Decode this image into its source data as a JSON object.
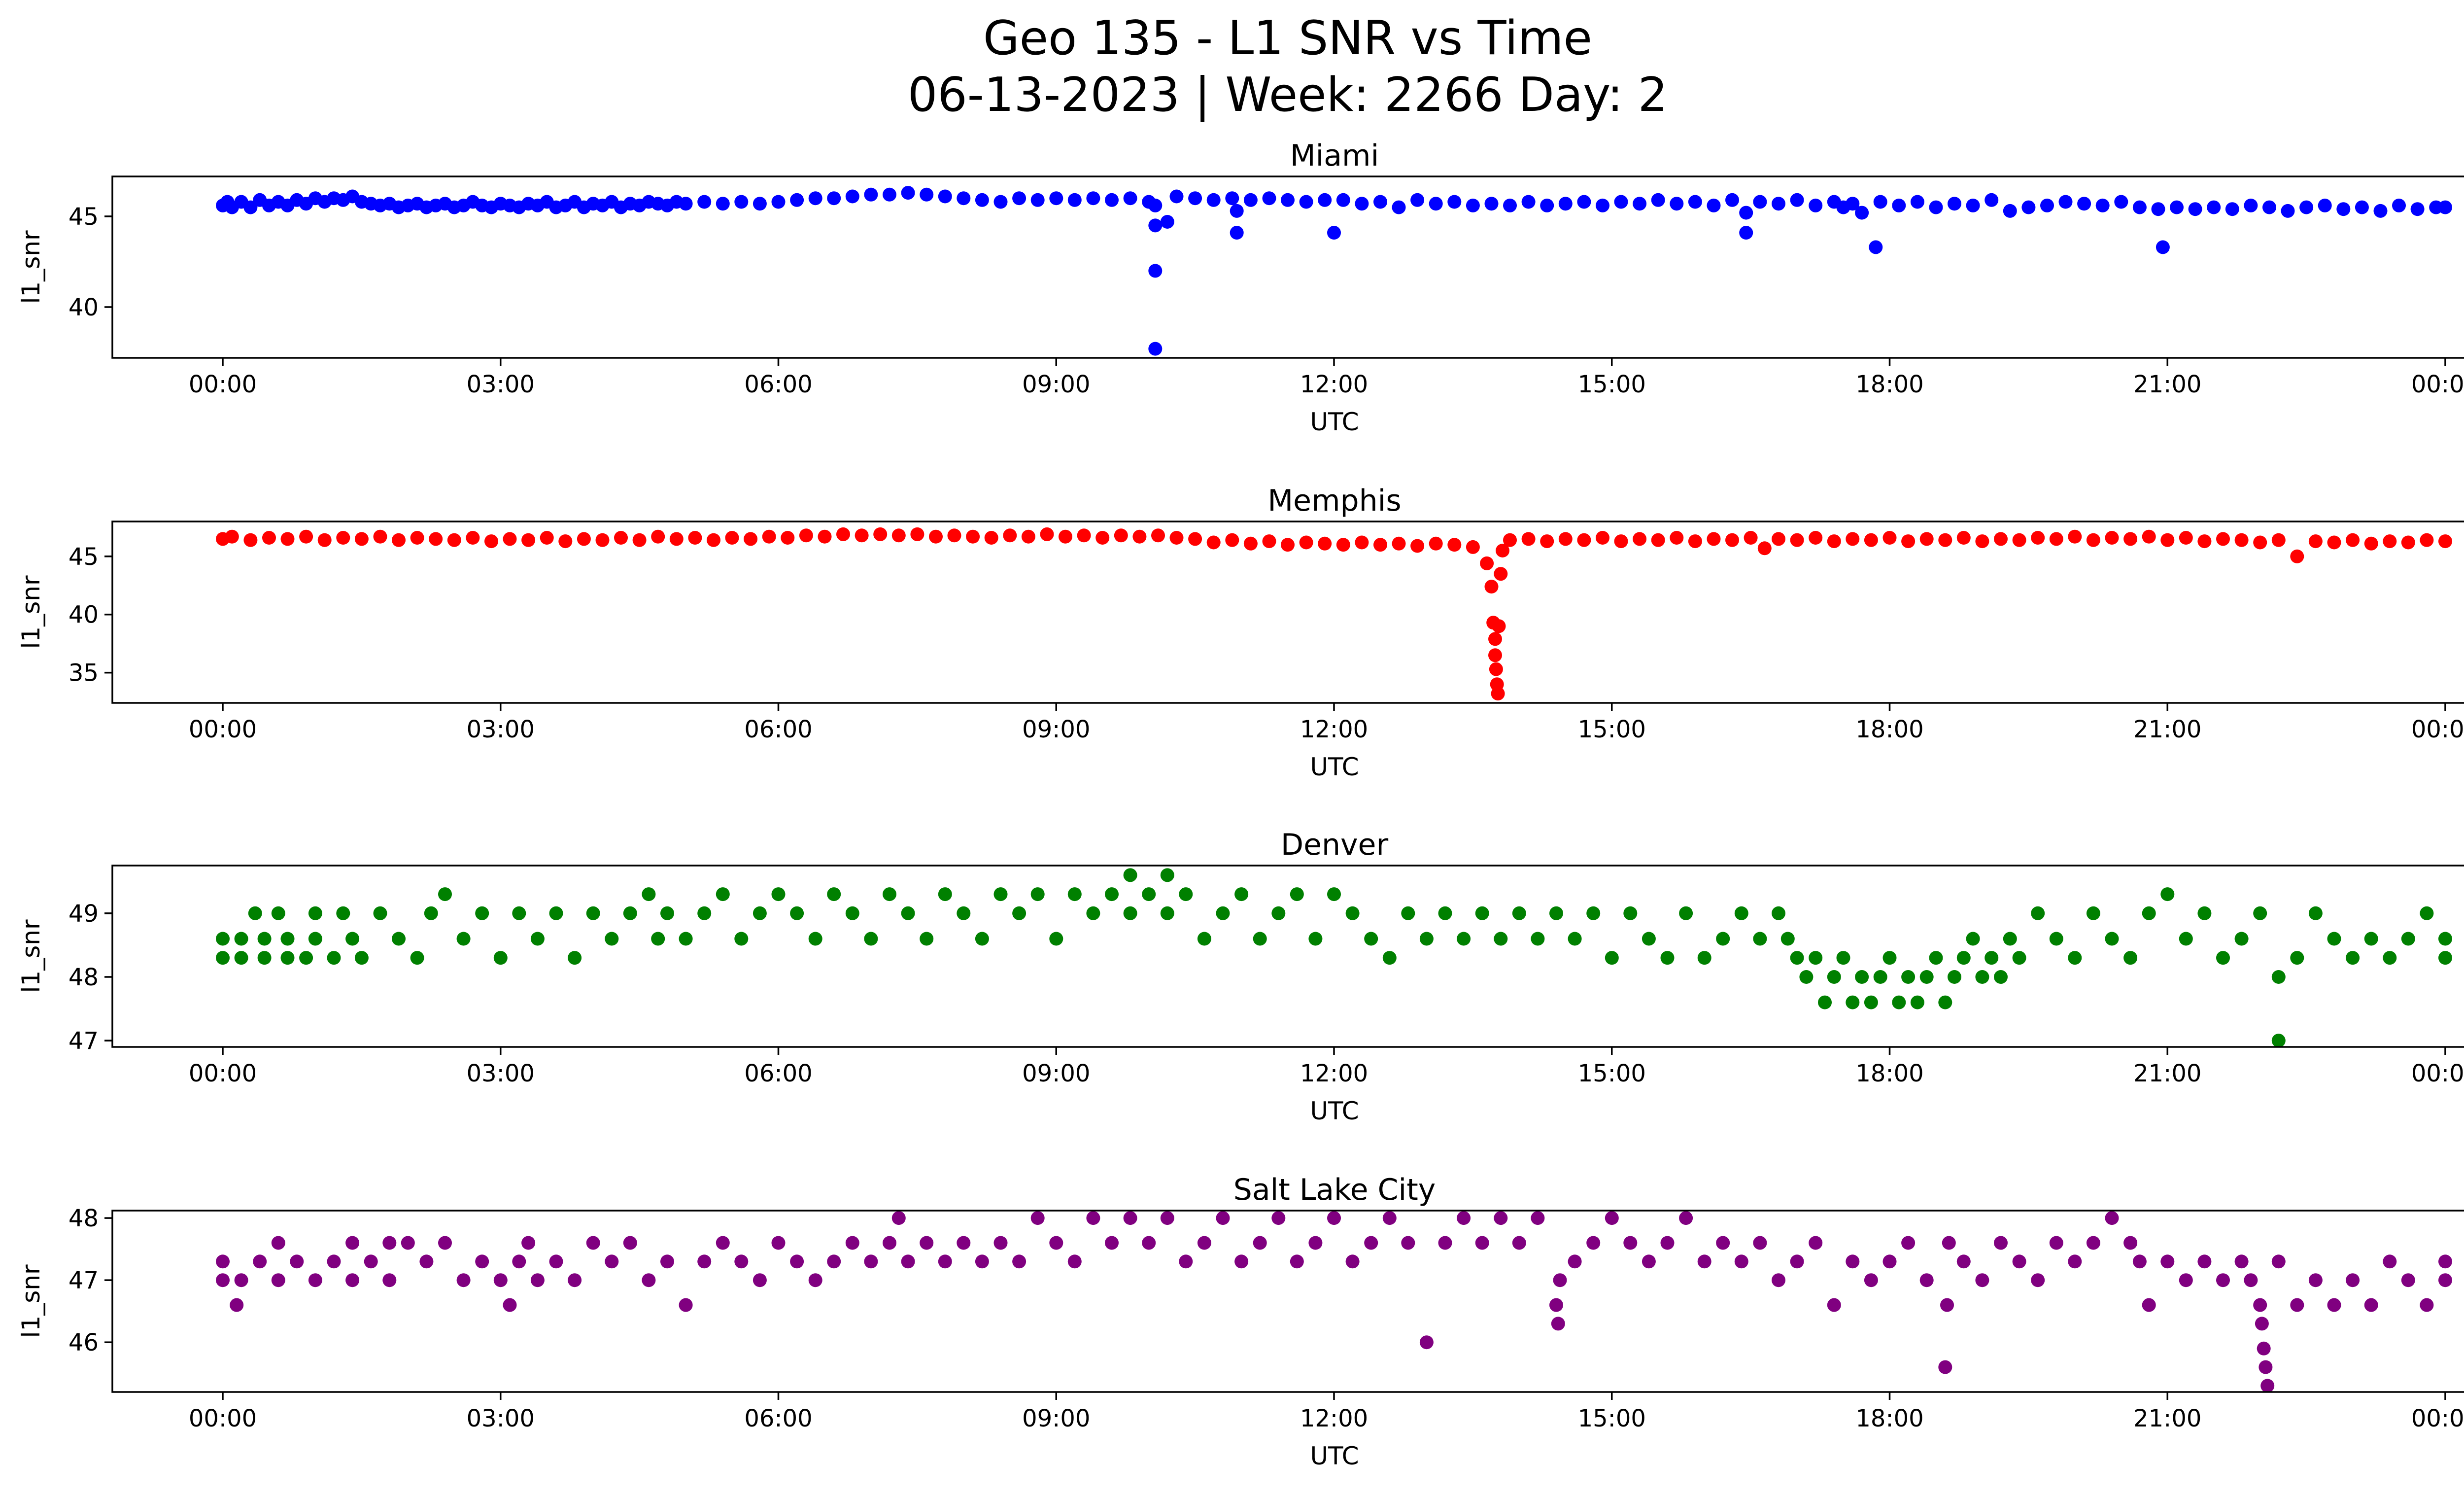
{
  "figure": {
    "title_line1": "Geo 135 - L1 SNR vs Time",
    "title_line2": "06-13-2023 | Week: 2266 Day: 2"
  },
  "chart_data": [
    {
      "type": "scatter",
      "title": "Miami",
      "xlabel": "UTC",
      "ylabel": "l1_snr",
      "color": "#0000ff",
      "xlim": [
        "2023-06-13 00:00",
        "2023-06-14 00:00"
      ],
      "ylim": [
        37.2,
        47.2
      ],
      "xticks": [
        "00:00",
        "03:00",
        "06:00",
        "09:00",
        "12:00",
        "15:00",
        "18:00",
        "21:00",
        "00:00"
      ],
      "yticks": [
        40,
        45
      ],
      "x_hours": [
        0.0,
        0.05,
        0.1,
        0.2,
        0.3,
        0.4,
        0.5,
        0.6,
        0.7,
        0.8,
        0.9,
        1.0,
        1.1,
        1.2,
        1.3,
        1.4,
        1.5,
        1.6,
        1.7,
        1.8,
        1.9,
        2.0,
        2.1,
        2.2,
        2.3,
        2.4,
        2.5,
        2.6,
        2.7,
        2.8,
        2.9,
        3.0,
        3.1,
        3.2,
        3.3,
        3.4,
        3.5,
        3.6,
        3.7,
        3.8,
        3.9,
        4.0,
        4.1,
        4.2,
        4.3,
        4.4,
        4.5,
        4.6,
        4.7,
        4.8,
        4.9,
        5.0,
        5.2,
        5.4,
        5.6,
        5.8,
        6.0,
        6.2,
        6.4,
        6.6,
        6.8,
        7.0,
        7.2,
        7.4,
        7.6,
        7.8,
        8.0,
        8.2,
        8.4,
        8.6,
        8.8,
        9.0,
        9.2,
        9.4,
        9.6,
        9.8,
        10.0,
        10.07,
        10.07,
        10.07,
        10.07,
        10.2,
        10.3,
        10.5,
        10.7,
        10.9,
        10.95,
        10.95,
        11.1,
        11.3,
        11.5,
        11.7,
        11.9,
        12.0,
        12.1,
        12.3,
        12.5,
        12.7,
        12.9,
        13.1,
        13.3,
        13.5,
        13.7,
        13.9,
        14.1,
        14.3,
        14.5,
        14.7,
        14.9,
        15.1,
        15.3,
        15.5,
        15.7,
        15.9,
        16.1,
        16.3,
        16.45,
        16.45,
        16.6,
        16.8,
        17.0,
        17.2,
        17.4,
        17.5,
        17.6,
        17.7,
        17.85,
        17.9,
        18.1,
        18.3,
        18.5,
        18.7,
        18.9,
        19.1,
        19.3,
        19.5,
        19.7,
        19.9,
        20.1,
        20.3,
        20.5,
        20.7,
        20.9,
        20.95,
        21.1,
        21.3,
        21.5,
        21.7,
        21.9,
        22.1,
        22.3,
        22.5,
        22.7,
        22.9,
        23.1,
        23.3,
        23.5,
        23.7,
        23.9,
        24.0
      ],
      "values": [
        45.6,
        45.8,
        45.5,
        45.8,
        45.5,
        45.9,
        45.6,
        45.8,
        45.6,
        45.9,
        45.7,
        46.0,
        45.8,
        46.0,
        45.9,
        46.1,
        45.8,
        45.7,
        45.6,
        45.7,
        45.5,
        45.6,
        45.7,
        45.5,
        45.6,
        45.7,
        45.5,
        45.6,
        45.8,
        45.6,
        45.5,
        45.7,
        45.6,
        45.5,
        45.7,
        45.6,
        45.8,
        45.5,
        45.6,
        45.8,
        45.5,
        45.7,
        45.6,
        45.8,
        45.5,
        45.7,
        45.6,
        45.8,
        45.7,
        45.6,
        45.8,
        45.7,
        45.8,
        45.7,
        45.8,
        45.7,
        45.8,
        45.9,
        46.0,
        46.0,
        46.1,
        46.2,
        46.2,
        46.3,
        46.2,
        46.1,
        46.0,
        45.9,
        45.8,
        46.0,
        45.9,
        46.0,
        45.9,
        46.0,
        45.9,
        46.0,
        45.8,
        44.5,
        42.0,
        37.7,
        45.6,
        44.7,
        46.1,
        46.0,
        45.9,
        46.0,
        45.3,
        44.1,
        45.9,
        46.0,
        45.9,
        45.8,
        45.9,
        44.1,
        45.9,
        45.7,
        45.8,
        45.5,
        45.9,
        45.7,
        45.8,
        45.6,
        45.7,
        45.6,
        45.8,
        45.6,
        45.7,
        45.8,
        45.6,
        45.8,
        45.7,
        45.9,
        45.7,
        45.8,
        45.6,
        45.9,
        45.2,
        44.1,
        45.8,
        45.7,
        45.9,
        45.6,
        45.8,
        45.5,
        45.7,
        45.2,
        43.3,
        45.8,
        45.6,
        45.8,
        45.5,
        45.7,
        45.6,
        45.9,
        45.3,
        45.5,
        45.6,
        45.8,
        45.7,
        45.6,
        45.8,
        45.5,
        45.4,
        43.3,
        45.5,
        45.4,
        45.5,
        45.4,
        45.6,
        45.5,
        45.3,
        45.5,
        45.6,
        45.4,
        45.5,
        45.3,
        45.6,
        45.4,
        45.5,
        45.5
      ]
    },
    {
      "type": "scatter",
      "title": "Memphis",
      "xlabel": "UTC",
      "ylabel": "l1_snr",
      "color": "#ff0000",
      "xlim": [
        "2023-06-13 00:00",
        "2023-06-14 00:00"
      ],
      "ylim": [
        32.4,
        48.0
      ],
      "xticks": [
        "00:00",
        "03:00",
        "06:00",
        "09:00",
        "12:00",
        "15:00",
        "18:00",
        "21:00",
        "00:00"
      ],
      "yticks": [
        35,
        40,
        45
      ],
      "x_hours": [
        0.0,
        0.1,
        0.3,
        0.5,
        0.7,
        0.9,
        1.1,
        1.3,
        1.5,
        1.7,
        1.9,
        2.1,
        2.3,
        2.5,
        2.7,
        2.9,
        3.1,
        3.3,
        3.5,
        3.7,
        3.9,
        4.1,
        4.3,
        4.5,
        4.7,
        4.9,
        5.1,
        5.3,
        5.5,
        5.7,
        5.9,
        6.1,
        6.3,
        6.5,
        6.7,
        6.9,
        7.1,
        7.3,
        7.5,
        7.7,
        7.9,
        8.1,
        8.3,
        8.5,
        8.7,
        8.9,
        9.1,
        9.3,
        9.5,
        9.7,
        9.9,
        10.1,
        10.3,
        10.5,
        10.7,
        10.9,
        11.1,
        11.3,
        11.5,
        11.7,
        11.9,
        12.1,
        12.3,
        12.5,
        12.7,
        12.9,
        13.1,
        13.3,
        13.5,
        13.65,
        13.7,
        13.72,
        13.74,
        13.74,
        13.75,
        13.76,
        13.77,
        13.78,
        13.8,
        13.82,
        13.9,
        14.1,
        14.3,
        14.5,
        14.7,
        14.9,
        15.1,
        15.3,
        15.5,
        15.7,
        15.9,
        16.1,
        16.3,
        16.5,
        16.65,
        16.8,
        17.0,
        17.2,
        17.4,
        17.6,
        17.8,
        18.0,
        18.2,
        18.4,
        18.6,
        18.8,
        19.0,
        19.2,
        19.4,
        19.6,
        19.8,
        20.0,
        20.2,
        20.4,
        20.6,
        20.8,
        21.0,
        21.2,
        21.4,
        21.6,
        21.8,
        22.0,
        22.2,
        22.4,
        22.6,
        22.8,
        23.0,
        23.2,
        23.4,
        23.6,
        23.8,
        24.0
      ],
      "values": [
        46.5,
        46.7,
        46.4,
        46.6,
        46.5,
        46.7,
        46.4,
        46.6,
        46.5,
        46.7,
        46.4,
        46.6,
        46.5,
        46.4,
        46.6,
        46.3,
        46.5,
        46.4,
        46.6,
        46.3,
        46.5,
        46.4,
        46.6,
        46.4,
        46.7,
        46.5,
        46.6,
        46.4,
        46.6,
        46.5,
        46.7,
        46.6,
        46.8,
        46.7,
        46.9,
        46.8,
        46.9,
        46.8,
        46.9,
        46.7,
        46.8,
        46.7,
        46.6,
        46.8,
        46.7,
        46.9,
        46.7,
        46.8,
        46.6,
        46.8,
        46.7,
        46.8,
        46.6,
        46.5,
        46.2,
        46.4,
        46.1,
        46.3,
        46.0,
        46.2,
        46.1,
        46.0,
        46.2,
        46.0,
        46.1,
        45.9,
        46.1,
        46.0,
        45.8,
        44.4,
        42.4,
        39.3,
        37.9,
        36.5,
        35.3,
        34.0,
        33.2,
        39.0,
        43.5,
        45.5,
        46.4,
        46.5,
        46.3,
        46.5,
        46.4,
        46.6,
        46.3,
        46.5,
        46.4,
        46.6,
        46.3,
        46.5,
        46.4,
        46.6,
        45.7,
        46.5,
        46.4,
        46.6,
        46.3,
        46.5,
        46.4,
        46.6,
        46.3,
        46.5,
        46.4,
        46.6,
        46.3,
        46.5,
        46.4,
        46.6,
        46.5,
        46.7,
        46.4,
        46.6,
        46.5,
        46.7,
        46.4,
        46.6,
        46.3,
        46.5,
        46.4,
        46.2,
        46.4,
        45.0,
        46.3,
        46.2,
        46.4,
        46.1,
        46.3,
        46.2,
        46.4,
        46.3
      ]
    },
    {
      "type": "scatter",
      "title": "Denver",
      "xlabel": "UTC",
      "ylabel": "l1_snr",
      "color": "#008000",
      "xlim": [
        "2023-06-13 00:00",
        "2023-06-14 00:00"
      ],
      "ylim": [
        46.9,
        49.75
      ],
      "xticks": [
        "00:00",
        "03:00",
        "06:00",
        "09:00",
        "12:00",
        "15:00",
        "18:00",
        "21:00",
        "00:00"
      ],
      "yticks": [
        47,
        48,
        49
      ],
      "x_hours": [
        0.0,
        0.0,
        0.2,
        0.2,
        0.35,
        0.45,
        0.45,
        0.6,
        0.7,
        0.7,
        0.9,
        1.0,
        1.0,
        1.2,
        1.3,
        1.4,
        1.5,
        1.7,
        1.9,
        2.1,
        2.25,
        2.4,
        2.6,
        2.8,
        3.0,
        3.2,
        3.4,
        3.6,
        3.8,
        4.0,
        4.2,
        4.4,
        4.6,
        4.7,
        4.8,
        5.0,
        5.2,
        5.4,
        5.6,
        5.8,
        6.0,
        6.2,
        6.4,
        6.6,
        6.8,
        7.0,
        7.2,
        7.4,
        7.6,
        7.8,
        8.0,
        8.2,
        8.4,
        8.6,
        8.8,
        9.0,
        9.2,
        9.4,
        9.6,
        9.8,
        9.8,
        10.0,
        10.2,
        10.2,
        10.4,
        10.6,
        10.8,
        11.0,
        11.2,
        11.4,
        11.6,
        11.8,
        12.0,
        12.2,
        12.4,
        12.6,
        12.8,
        13.0,
        13.2,
        13.4,
        13.6,
        13.8,
        14.0,
        14.2,
        14.4,
        14.6,
        14.8,
        15.0,
        15.2,
        15.4,
        15.6,
        15.8,
        16.0,
        16.2,
        16.4,
        16.6,
        16.8,
        16.9,
        17.0,
        17.1,
        17.2,
        17.3,
        17.4,
        17.5,
        17.6,
        17.7,
        17.8,
        17.9,
        18.0,
        18.1,
        18.2,
        18.3,
        18.4,
        18.5,
        18.6,
        18.7,
        18.8,
        18.9,
        19.0,
        19.1,
        19.2,
        19.3,
        19.4,
        19.6,
        19.8,
        20.0,
        20.2,
        20.4,
        20.6,
        20.8,
        21.0,
        21.2,
        21.4,
        21.6,
        21.8,
        22.0,
        22.2,
        22.2,
        22.4,
        22.6,
        22.8,
        23.0,
        23.2,
        23.4,
        23.6,
        23.8,
        24.0,
        24.0
      ],
      "values": [
        48.3,
        48.6,
        48.3,
        48.6,
        49.0,
        48.3,
        48.6,
        49.0,
        48.3,
        48.6,
        48.3,
        48.6,
        49.0,
        48.3,
        49.0,
        48.6,
        48.3,
        49.0,
        48.6,
        48.3,
        49.0,
        49.3,
        48.6,
        49.0,
        48.3,
        49.0,
        48.6,
        49.0,
        48.3,
        49.0,
        48.6,
        49.0,
        49.3,
        48.6,
        49.0,
        48.6,
        49.0,
        49.3,
        48.6,
        49.0,
        49.3,
        49.0,
        48.6,
        49.3,
        49.0,
        48.6,
        49.3,
        49.0,
        48.6,
        49.3,
        49.0,
        48.6,
        49.3,
        49.0,
        49.3,
        48.6,
        49.3,
        49.0,
        49.3,
        49.0,
        49.6,
        49.3,
        49.0,
        49.6,
        49.3,
        48.6,
        49.0,
        49.3,
        48.6,
        49.0,
        49.3,
        48.6,
        49.3,
        49.0,
        48.6,
        48.3,
        49.0,
        48.6,
        49.0,
        48.6,
        49.0,
        48.6,
        49.0,
        48.6,
        49.0,
        48.6,
        49.0,
        48.3,
        49.0,
        48.6,
        48.3,
        49.0,
        48.3,
        48.6,
        49.0,
        48.6,
        49.0,
        48.6,
        48.3,
        48.0,
        48.3,
        47.6,
        48.0,
        48.3,
        47.6,
        48.0,
        47.6,
        48.0,
        48.3,
        47.6,
        48.0,
        47.6,
        48.0,
        48.3,
        47.6,
        48.0,
        48.3,
        48.6,
        48.0,
        48.3,
        48.0,
        48.6,
        48.3,
        49.0,
        48.6,
        48.3,
        49.0,
        48.6,
        48.3,
        49.0,
        49.3,
        48.6,
        49.0,
        48.3,
        48.6,
        49.0,
        48.0,
        47.0,
        48.3,
        49.0,
        48.6,
        48.3,
        48.6,
        48.3,
        48.6,
        49.0,
        48.3,
        48.6
      ]
    },
    {
      "type": "scatter",
      "title": "Salt Lake City",
      "xlabel": "UTC",
      "ylabel": "l1_snr",
      "color": "#800080",
      "xlim": [
        "2023-06-13 00:00",
        "2023-06-14 00:00"
      ],
      "ylim": [
        45.2,
        48.12
      ],
      "xticks": [
        "00:00",
        "03:00",
        "06:00",
        "09:00",
        "12:00",
        "15:00",
        "18:00",
        "21:00",
        "00:00"
      ],
      "yticks": [
        46,
        47,
        48
      ],
      "x_hours": [
        0.0,
        0.0,
        0.15,
        0.2,
        0.4,
        0.6,
        0.6,
        0.8,
        1.0,
        1.2,
        1.4,
        1.4,
        1.6,
        1.8,
        1.8,
        2.0,
        2.2,
        2.4,
        2.6,
        2.8,
        3.0,
        3.1,
        3.2,
        3.3,
        3.4,
        3.6,
        3.8,
        4.0,
        4.2,
        4.4,
        4.6,
        4.8,
        5.0,
        5.2,
        5.4,
        5.6,
        5.8,
        6.0,
        6.2,
        6.4,
        6.6,
        6.8,
        7.0,
        7.2,
        7.3,
        7.4,
        7.6,
        7.8,
        8.0,
        8.2,
        8.4,
        8.6,
        8.8,
        9.0,
        9.2,
        9.4,
        9.6,
        9.8,
        10.0,
        10.2,
        10.4,
        10.6,
        10.8,
        11.0,
        11.2,
        11.4,
        11.6,
        11.8,
        12.0,
        12.2,
        12.4,
        12.6,
        12.8,
        13.0,
        13.2,
        13.4,
        13.6,
        13.8,
        14.0,
        14.2,
        14.4,
        14.42,
        14.44,
        14.6,
        14.8,
        15.0,
        15.2,
        15.4,
        15.6,
        15.8,
        16.0,
        16.2,
        16.4,
        16.6,
        16.8,
        17.0,
        17.2,
        17.4,
        17.6,
        17.8,
        18.0,
        18.2,
        18.4,
        18.6,
        18.62,
        18.64,
        18.8,
        19.0,
        19.2,
        19.4,
        19.6,
        19.8,
        20.0,
        20.2,
        20.4,
        20.6,
        20.7,
        20.8,
        21.0,
        21.2,
        21.4,
        21.6,
        21.8,
        21.9,
        22.0,
        22.02,
        22.04,
        22.06,
        22.08,
        22.2,
        22.4,
        22.6,
        22.8,
        23.0,
        23.2,
        23.4,
        23.6,
        23.8,
        24.0,
        24.0
      ],
      "values": [
        47.0,
        47.3,
        46.6,
        47.0,
        47.3,
        47.6,
        47.0,
        47.3,
        47.0,
        47.3,
        47.6,
        47.0,
        47.3,
        47.6,
        47.0,
        47.6,
        47.3,
        47.6,
        47.0,
        47.3,
        47.0,
        46.6,
        47.3,
        47.6,
        47.0,
        47.3,
        47.0,
        47.6,
        47.3,
        47.6,
        47.0,
        47.3,
        46.6,
        47.3,
        47.6,
        47.3,
        47.0,
        47.6,
        47.3,
        47.0,
        47.3,
        47.6,
        47.3,
        47.6,
        48.0,
        47.3,
        47.6,
        47.3,
        47.6,
        47.3,
        47.6,
        47.3,
        48.0,
        47.6,
        47.3,
        48.0,
        47.6,
        48.0,
        47.6,
        48.0,
        47.3,
        47.6,
        48.0,
        47.3,
        47.6,
        48.0,
        47.3,
        47.6,
        48.0,
        47.3,
        47.6,
        48.0,
        47.6,
        46.0,
        47.6,
        48.0,
        47.6,
        48.0,
        47.6,
        48.0,
        46.6,
        46.3,
        47.0,
        47.3,
        47.6,
        48.0,
        47.6,
        47.3,
        47.6,
        48.0,
        47.3,
        47.6,
        47.3,
        47.6,
        47.0,
        47.3,
        47.6,
        46.6,
        47.3,
        47.0,
        47.3,
        47.6,
        47.0,
        45.6,
        46.6,
        47.6,
        47.3,
        47.0,
        47.6,
        47.3,
        47.0,
        47.6,
        47.3,
        47.6,
        48.0,
        47.6,
        47.3,
        46.6,
        47.3,
        47.0,
        47.3,
        47.0,
        47.3,
        47.0,
        46.6,
        46.3,
        45.9,
        45.6,
        45.3,
        47.3,
        46.6,
        47.0,
        46.6,
        47.0,
        46.6,
        47.3,
        47.0,
        46.6,
        47.0,
        47.3
      ]
    }
  ]
}
